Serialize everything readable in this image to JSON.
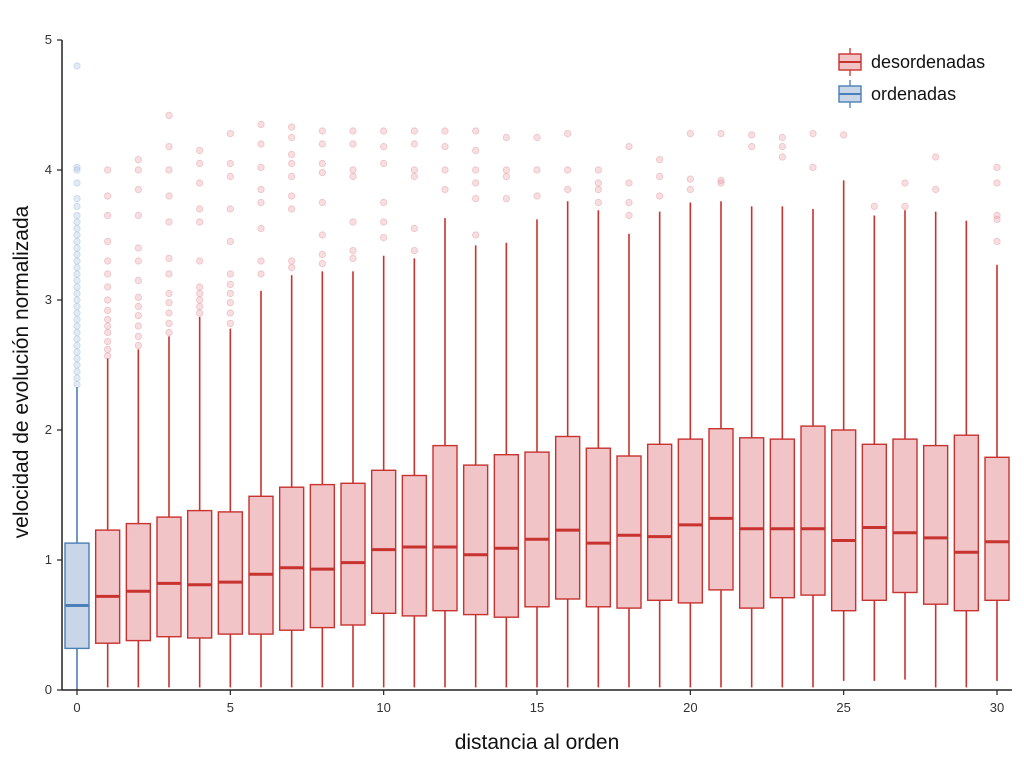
{
  "chart_data": {
    "type": "box",
    "xlabel": "distancia al orden",
    "ylabel": "velocidad de evolución normalizada",
    "xlim": [
      0,
      30
    ],
    "ylim": [
      0,
      5
    ],
    "x_ticks": [
      "0",
      "5",
      "10",
      "15",
      "20",
      "25",
      "30"
    ],
    "y_ticks": [
      "0",
      "1",
      "2",
      "3",
      "4",
      "5"
    ],
    "grid": false,
    "legend_position": "top-right",
    "colors": {
      "desordenadas": {
        "fill": "#f1c4c8",
        "stroke": "#c8322f",
        "outlier": "#e8a2aa"
      },
      "ordenadas": {
        "fill": "#c9d6e8",
        "stroke": "#4a7fb8",
        "outlier": "#a8c4e2"
      }
    },
    "series": [
      {
        "name": "ordenadas",
        "boxes": [
          {
            "x": 0,
            "q1": 0.32,
            "median": 0.65,
            "q3": 1.13,
            "whisker_low": 0.0,
            "whisker_high": 2.33,
            "outliers": [
              2.35,
              2.4,
              2.45,
              2.5,
              2.55,
              2.6,
              2.65,
              2.7,
              2.75,
              2.8,
              2.85,
              2.9,
              2.95,
              3.0,
              3.05,
              3.1,
              3.15,
              3.2,
              3.25,
              3.3,
              3.35,
              3.4,
              3.45,
              3.5,
              3.55,
              3.6,
              3.65,
              3.72,
              3.78,
              3.9,
              4.0,
              4.02,
              4.8
            ]
          }
        ]
      },
      {
        "name": "desordenadas",
        "boxes": [
          {
            "x": 1,
            "q1": 0.36,
            "median": 0.72,
            "q3": 1.23,
            "whisker_low": 0.02,
            "whisker_high": 2.55,
            "outliers": [
              2.57,
              2.62,
              2.68,
              2.75,
              2.8,
              2.85,
              2.92,
              3.0,
              3.1,
              3.2,
              3.3,
              3.45,
              3.65,
              3.8,
              4.0
            ]
          },
          {
            "x": 2,
            "q1": 0.38,
            "median": 0.76,
            "q3": 1.28,
            "whisker_low": 0.02,
            "whisker_high": 2.62,
            "outliers": [
              2.65,
              2.72,
              2.8,
              2.88,
              2.95,
              3.02,
              3.15,
              3.3,
              3.4,
              3.65,
              3.85,
              4.0,
              4.08
            ]
          },
          {
            "x": 3,
            "q1": 0.41,
            "median": 0.82,
            "q3": 1.33,
            "whisker_low": 0.02,
            "whisker_high": 2.72,
            "outliers": [
              2.75,
              2.82,
              2.9,
              2.98,
              3.05,
              3.2,
              3.32,
              3.6,
              3.8,
              4.0,
              4.18,
              4.42
            ]
          },
          {
            "x": 4,
            "q1": 0.4,
            "median": 0.81,
            "q3": 1.38,
            "whisker_low": 0.02,
            "whisker_high": 2.87,
            "outliers": [
              2.9,
              2.95,
              3.0,
              3.05,
              3.1,
              3.3,
              3.6,
              3.7,
              3.9,
              4.05,
              4.15
            ]
          },
          {
            "x": 5,
            "q1": 0.43,
            "median": 0.83,
            "q3": 1.37,
            "whisker_low": 0.02,
            "whisker_high": 2.78,
            "outliers": [
              2.82,
              2.9,
              2.98,
              3.05,
              3.12,
              3.2,
              3.45,
              3.7,
              3.95,
              4.05,
              4.28
            ]
          },
          {
            "x": 6,
            "q1": 0.43,
            "median": 0.89,
            "q3": 1.49,
            "whisker_low": 0.02,
            "whisker_high": 3.07,
            "outliers": [
              3.2,
              3.3,
              3.55,
              3.75,
              3.85,
              4.02,
              4.2,
              4.35
            ]
          },
          {
            "x": 7,
            "q1": 0.46,
            "median": 0.94,
            "q3": 1.56,
            "whisker_low": 0.02,
            "whisker_high": 3.19,
            "outliers": [
              3.25,
              3.3,
              3.7,
              3.8,
              3.95,
              4.05,
              4.12,
              4.25,
              4.33
            ]
          },
          {
            "x": 8,
            "q1": 0.48,
            "median": 0.93,
            "q3": 1.58,
            "whisker_low": 0.02,
            "whisker_high": 3.22,
            "outliers": [
              3.28,
              3.35,
              3.5,
              3.75,
              3.98,
              4.05,
              4.2,
              4.3
            ]
          },
          {
            "x": 9,
            "q1": 0.5,
            "median": 0.98,
            "q3": 1.59,
            "whisker_low": 0.02,
            "whisker_high": 3.22,
            "outliers": [
              3.32,
              3.38,
              3.6,
              3.95,
              4.0,
              4.2,
              4.3
            ]
          },
          {
            "x": 10,
            "q1": 0.59,
            "median": 1.08,
            "q3": 1.69,
            "whisker_low": 0.02,
            "whisker_high": 3.34,
            "outliers": [
              3.48,
              3.6,
              3.75,
              4.05,
              4.18,
              4.3
            ]
          },
          {
            "x": 11,
            "q1": 0.57,
            "median": 1.1,
            "q3": 1.65,
            "whisker_low": 0.02,
            "whisker_high": 3.32,
            "outliers": [
              3.38,
              3.55,
              3.95,
              4.0,
              4.2,
              4.3
            ]
          },
          {
            "x": 12,
            "q1": 0.61,
            "median": 1.1,
            "q3": 1.88,
            "whisker_low": 0.02,
            "whisker_high": 3.63,
            "outliers": [
              3.85,
              4.0,
              4.18,
              4.3
            ]
          },
          {
            "x": 13,
            "q1": 0.58,
            "median": 1.04,
            "q3": 1.73,
            "whisker_low": 0.02,
            "whisker_high": 3.42,
            "outliers": [
              3.5,
              3.78,
              3.9,
              4.0,
              4.15,
              4.3
            ]
          },
          {
            "x": 14,
            "q1": 0.56,
            "median": 1.09,
            "q3": 1.81,
            "whisker_low": 0.02,
            "whisker_high": 3.44,
            "outliers": [
              3.78,
              3.95,
              4.0,
              4.25
            ]
          },
          {
            "x": 15,
            "q1": 0.64,
            "median": 1.16,
            "q3": 1.83,
            "whisker_low": 0.02,
            "whisker_high": 3.62,
            "outliers": [
              3.8,
              4.0,
              4.25
            ]
          },
          {
            "x": 16,
            "q1": 0.7,
            "median": 1.23,
            "q3": 1.95,
            "whisker_low": 0.02,
            "whisker_high": 3.76,
            "outliers": [
              3.85,
              4.0,
              4.28
            ]
          },
          {
            "x": 17,
            "q1": 0.64,
            "median": 1.13,
            "q3": 1.86,
            "whisker_low": 0.02,
            "whisker_high": 3.69,
            "outliers": [
              3.75,
              3.85,
              3.9,
              4.0
            ]
          },
          {
            "x": 18,
            "q1": 0.63,
            "median": 1.19,
            "q3": 1.8,
            "whisker_low": 0.02,
            "whisker_high": 3.51,
            "outliers": [
              3.65,
              3.75,
              3.9,
              4.18
            ]
          },
          {
            "x": 19,
            "q1": 0.69,
            "median": 1.18,
            "q3": 1.89,
            "whisker_low": 0.02,
            "whisker_high": 3.68,
            "outliers": [
              3.8,
              3.95,
              4.08
            ]
          },
          {
            "x": 20,
            "q1": 0.67,
            "median": 1.27,
            "q3": 1.93,
            "whisker_low": 0.02,
            "whisker_high": 3.75,
            "outliers": [
              3.85,
              3.93,
              4.28
            ]
          },
          {
            "x": 21,
            "q1": 0.77,
            "median": 1.32,
            "q3": 2.01,
            "whisker_low": 0.02,
            "whisker_high": 3.76,
            "outliers": [
              3.9,
              3.92,
              4.28
            ]
          },
          {
            "x": 22,
            "q1": 0.63,
            "median": 1.24,
            "q3": 1.94,
            "whisker_low": 0.02,
            "whisker_high": 3.72,
            "outliers": [
              4.18,
              4.27
            ]
          },
          {
            "x": 23,
            "q1": 0.71,
            "median": 1.24,
            "q3": 1.93,
            "whisker_low": 0.02,
            "whisker_high": 3.72,
            "outliers": [
              4.1,
              4.18,
              4.25
            ]
          },
          {
            "x": 24,
            "q1": 0.73,
            "median": 1.24,
            "q3": 2.03,
            "whisker_low": 0.02,
            "whisker_high": 3.7,
            "outliers": [
              4.02,
              4.28
            ]
          },
          {
            "x": 25,
            "q1": 0.61,
            "median": 1.15,
            "q3": 2.0,
            "whisker_low": 0.07,
            "whisker_high": 3.92,
            "outliers": [
              4.27
            ]
          },
          {
            "x": 26,
            "q1": 0.69,
            "median": 1.25,
            "q3": 1.89,
            "whisker_low": 0.07,
            "whisker_high": 3.65,
            "outliers": [
              3.72
            ]
          },
          {
            "x": 27,
            "q1": 0.75,
            "median": 1.21,
            "q3": 1.93,
            "whisker_low": 0.08,
            "whisker_high": 3.69,
            "outliers": [
              3.72,
              3.9
            ]
          },
          {
            "x": 28,
            "q1": 0.66,
            "median": 1.17,
            "q3": 1.88,
            "whisker_low": 0.02,
            "whisker_high": 3.68,
            "outliers": [
              3.85,
              4.1
            ]
          },
          {
            "x": 29,
            "q1": 0.61,
            "median": 1.06,
            "q3": 1.96,
            "whisker_low": 0.02,
            "whisker_high": 3.61,
            "outliers": []
          },
          {
            "x": 30,
            "q1": 0.69,
            "median": 1.14,
            "q3": 1.79,
            "whisker_low": 0.07,
            "whisker_high": 3.27,
            "outliers": [
              3.45,
              3.62,
              3.65,
              3.9,
              4.02
            ]
          }
        ]
      }
    ]
  }
}
